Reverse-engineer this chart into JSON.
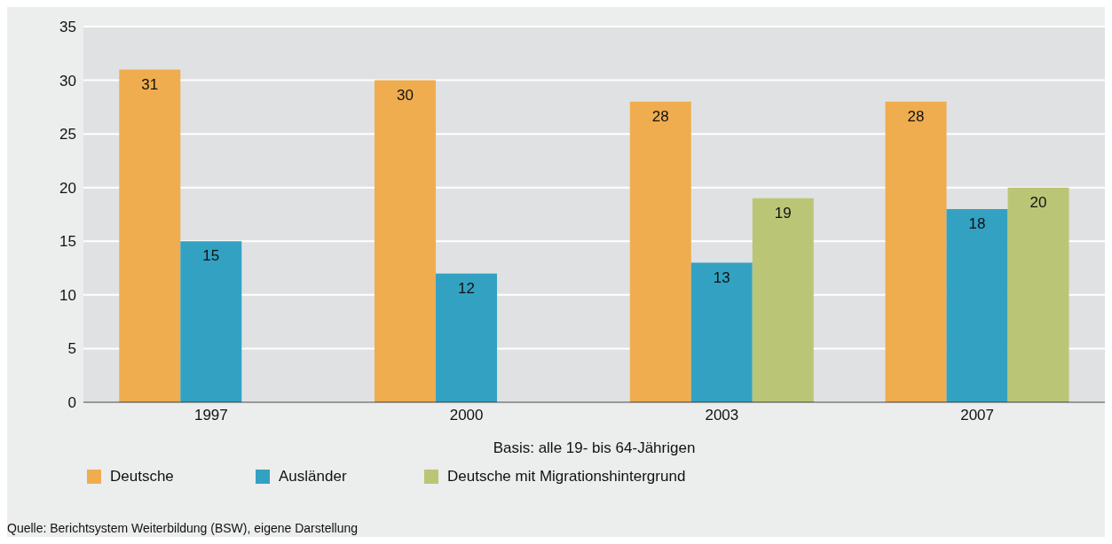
{
  "chart_data": {
    "type": "bar",
    "categories": [
      "1997",
      "2000",
      "2003",
      "2007"
    ],
    "series": [
      {
        "name": "Deutsche",
        "color": "#efad4f",
        "values": [
          31,
          30,
          28,
          28
        ]
      },
      {
        "name": "Ausländer",
        "color": "#33a2c2",
        "values": [
          15,
          12,
          13,
          18
        ]
      },
      {
        "name": "Deutsche mit Migrationshintergrund",
        "color": "#bac676",
        "values": [
          null,
          null,
          19,
          20
        ]
      }
    ],
    "xlabel": "Basis: alle 19- bis 64-Jährigen",
    "ylim": [
      0,
      35
    ],
    "yticks": [
      0,
      5,
      10,
      15,
      20,
      25,
      30,
      35
    ],
    "grid": "y",
    "legend": "bottom",
    "data_labels": true,
    "annotations": [
      "Quelle: Berichtsystem Weiterbildung (BSW), eigene Darstellung"
    ]
  }
}
